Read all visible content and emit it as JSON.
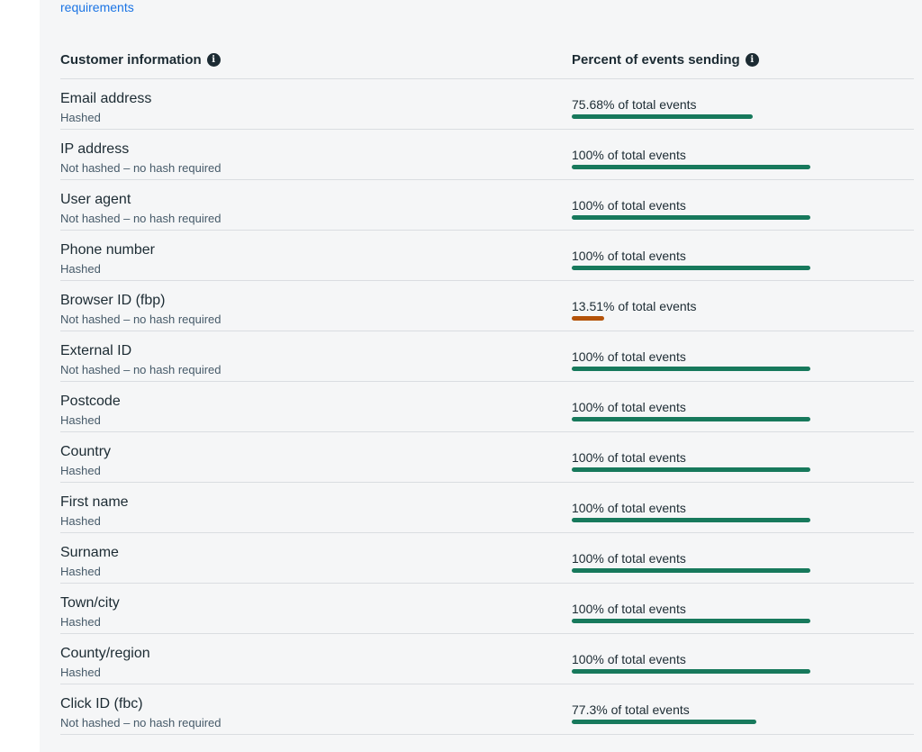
{
  "intro": {
    "link_text": "requirements"
  },
  "colors": {
    "link_blue": "#1b74e4",
    "panel_bg": "#f5f6f7",
    "text_primary": "#1c2b33",
    "text_secondary": "#465a69",
    "divider": "#dadde1",
    "bar_green": "#17795c",
    "bar_orange": "#b45309"
  },
  "table": {
    "columns": [
      {
        "label": "Customer information",
        "icon": "info-icon"
      },
      {
        "label": "Percent of events sending",
        "icon": "info-icon"
      }
    ],
    "rows": [
      {
        "name": "Email address",
        "hash_status": "Hashed",
        "percent": 75.68,
        "percent_label": "75.68% of total events",
        "bar_color": "green"
      },
      {
        "name": "IP address",
        "hash_status": "Not hashed – no hash required",
        "percent": 100,
        "percent_label": "100% of total events",
        "bar_color": "green"
      },
      {
        "name": "User agent",
        "hash_status": "Not hashed – no hash required",
        "percent": 100,
        "percent_label": "100% of total events",
        "bar_color": "green"
      },
      {
        "name": "Phone number",
        "hash_status": "Hashed",
        "percent": 100,
        "percent_label": "100% of total events",
        "bar_color": "green"
      },
      {
        "name": "Browser ID (fbp)",
        "hash_status": "Not hashed – no hash required",
        "percent": 13.51,
        "percent_label": "13.51% of total events",
        "bar_color": "orange"
      },
      {
        "name": "External ID",
        "hash_status": "Not hashed – no hash required",
        "percent": 100,
        "percent_label": "100% of total events",
        "bar_color": "green"
      },
      {
        "name": "Postcode",
        "hash_status": "Hashed",
        "percent": 100,
        "percent_label": "100% of total events",
        "bar_color": "green"
      },
      {
        "name": "Country",
        "hash_status": "Hashed",
        "percent": 100,
        "percent_label": "100% of total events",
        "bar_color": "green"
      },
      {
        "name": "First name",
        "hash_status": "Hashed",
        "percent": 100,
        "percent_label": "100% of total events",
        "bar_color": "green"
      },
      {
        "name": "Surname",
        "hash_status": "Hashed",
        "percent": 100,
        "percent_label": "100% of total events",
        "bar_color": "green"
      },
      {
        "name": "Town/city",
        "hash_status": "Hashed",
        "percent": 100,
        "percent_label": "100% of total events",
        "bar_color": "green"
      },
      {
        "name": "County/region",
        "hash_status": "Hashed",
        "percent": 100,
        "percent_label": "100% of total events",
        "bar_color": "green"
      },
      {
        "name": "Click ID (fbc)",
        "hash_status": "Not hashed – no hash required",
        "percent": 77.3,
        "percent_label": "77.3% of total events",
        "bar_color": "green"
      }
    ]
  }
}
